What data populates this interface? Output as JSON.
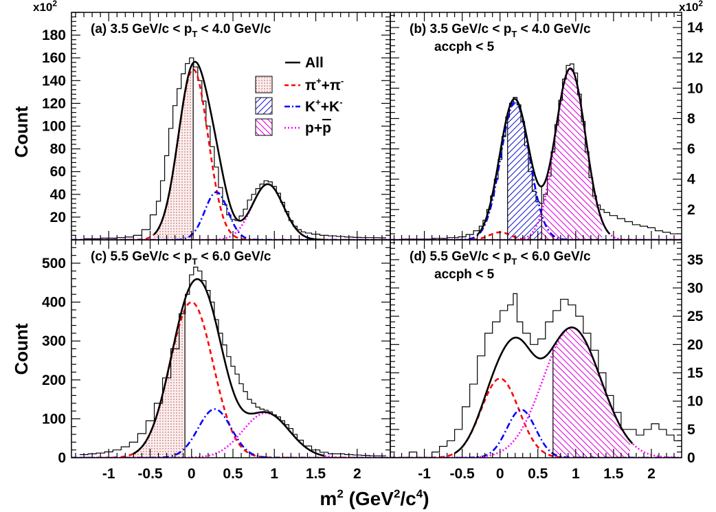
{
  "figure": {
    "y_title": "Count",
    "x_title_parts": [
      "m",
      "2",
      " (GeV",
      "2",
      "/c",
      "4",
      ")"
    ],
    "x_ticks": [
      "-1",
      "-0.5",
      "0",
      "0.5",
      "1",
      "1.5",
      "2"
    ],
    "colors": {
      "pi": "#ff0000",
      "k": "#0000ff",
      "p": "#ff00ff",
      "all": "#000000",
      "pi_fill": "#c06060"
    }
  },
  "chart_data": [
    {
      "id": "a",
      "type": "line",
      "label_parts": [
        "(a) 3.5 GeV/c < p",
        "T",
        " < 4.0 GeV/c"
      ],
      "label_line2": "",
      "xlim": [
        -1.45,
        2.4
      ],
      "ylim": [
        0,
        200
      ],
      "y_ticks": [
        "20",
        "40",
        "60",
        "80",
        "100",
        "120",
        "140",
        "160",
        "180"
      ],
      "y_tick_values": [
        20,
        40,
        60,
        80,
        100,
        120,
        140,
        160,
        180
      ],
      "y_side": "left",
      "multiplier_base": "x10",
      "multiplier_exp": "2",
      "legend": {
        "all": "All",
        "pi": [
          "π",
          "+",
          "+π",
          "-"
        ],
        "k": [
          "K",
          "+",
          "+K",
          "-"
        ],
        "p": [
          "p+",
          "p"
        ]
      },
      "series": [
        {
          "name": "π⁺+π⁻",
          "style": "dashed",
          "color": "#ff0000",
          "gaussian": {
            "amp": 150,
            "mu": 0.02,
            "sigma": 0.18
          }
        },
        {
          "name": "K⁺+K⁻",
          "style": "dashdot",
          "color": "#0000ff",
          "gaussian": {
            "amp": 42,
            "mu": 0.3,
            "sigma": 0.14
          }
        },
        {
          "name": "p+p̄",
          "style": "dotted",
          "color": "#ff00ff",
          "gaussian": {
            "amp": 49,
            "mu": 0.92,
            "sigma": 0.19
          }
        },
        {
          "name": "All",
          "style": "solid",
          "color": "#000000",
          "range": [
            -0.45,
            1.6
          ]
        }
      ],
      "fills": [
        {
          "species": "pi",
          "from": -0.45,
          "to": 0.02,
          "pattern": "dots"
        }
      ],
      "cut_lines": [
        0.02
      ],
      "hist": [
        [
          -1.25,
          1
        ],
        [
          -1.15,
          1
        ],
        [
          -1.05,
          1.5
        ],
        [
          -0.95,
          1.5
        ],
        [
          -0.85,
          2
        ],
        [
          -0.75,
          2.5
        ],
        [
          -0.65,
          4
        ],
        [
          -0.55,
          9
        ],
        [
          -0.45,
          22
        ],
        [
          -0.4,
          34
        ],
        [
          -0.35,
          52
        ],
        [
          -0.3,
          74
        ],
        [
          -0.25,
          98
        ],
        [
          -0.2,
          118
        ],
        [
          -0.15,
          133
        ],
        [
          -0.1,
          146
        ],
        [
          -0.05,
          155
        ],
        [
          0.0,
          160
        ],
        [
          0.05,
          152
        ],
        [
          0.1,
          140
        ],
        [
          0.15,
          122
        ],
        [
          0.2,
          100
        ],
        [
          0.25,
          82
        ],
        [
          0.3,
          64
        ],
        [
          0.35,
          46
        ],
        [
          0.4,
          31
        ],
        [
          0.45,
          22
        ],
        [
          0.5,
          18
        ],
        [
          0.55,
          17
        ],
        [
          0.6,
          21
        ],
        [
          0.65,
          27
        ],
        [
          0.7,
          35
        ],
        [
          0.75,
          40
        ],
        [
          0.8,
          45
        ],
        [
          0.85,
          49
        ],
        [
          0.9,
          52
        ],
        [
          0.95,
          51
        ],
        [
          1.0,
          47
        ],
        [
          1.05,
          41
        ],
        [
          1.1,
          33
        ],
        [
          1.15,
          25
        ],
        [
          1.2,
          17
        ],
        [
          1.25,
          12
        ],
        [
          1.3,
          9
        ],
        [
          1.35,
          7
        ],
        [
          1.4,
          6
        ],
        [
          1.5,
          5
        ],
        [
          1.6,
          4
        ],
        [
          1.7,
          3.5
        ],
        [
          1.8,
          3
        ],
        [
          1.9,
          2.5
        ],
        [
          2.0,
          2.2
        ],
        [
          2.1,
          2
        ],
        [
          2.2,
          2
        ],
        [
          2.3,
          1.8
        ]
      ]
    },
    {
      "id": "b",
      "type": "line",
      "label_parts": [
        "(b) 3.5 GeV/c < p",
        "T",
        " < 4.0 GeV/c"
      ],
      "label_line2": "accph < 5",
      "xlim": [
        -1.45,
        2.4
      ],
      "ylim": [
        0,
        15
      ],
      "y_ticks": [
        "2",
        "4",
        "6",
        "8",
        "10",
        "12",
        "14"
      ],
      "y_tick_values": [
        2,
        4,
        6,
        8,
        10,
        12,
        14
      ],
      "y_side": "right",
      "multiplier_base": "x10",
      "multiplier_exp": "2",
      "series": [
        {
          "name": "π⁺+π⁻",
          "style": "dashed",
          "color": "#ff0000",
          "gaussian": {
            "amp": 0.5,
            "mu": 0.0,
            "sigma": 0.14
          }
        },
        {
          "name": "K⁺+K⁻",
          "style": "dashdot",
          "color": "#0000ff",
          "gaussian": {
            "amp": 9.1,
            "mu": 0.2,
            "sigma": 0.19
          }
        },
        {
          "name": "p+p̄",
          "style": "dotted",
          "color": "#ff00ff",
          "gaussian": {
            "amp": 11.3,
            "mu": 0.93,
            "sigma": 0.2
          }
        },
        {
          "name": "All",
          "style": "solid",
          "color": "#000000",
          "range": [
            -0.3,
            1.45
          ]
        }
      ],
      "fills": [
        {
          "species": "k",
          "from": 0.1,
          "to": 0.55,
          "pattern": "hatch_fwd"
        },
        {
          "species": "p",
          "from": 0.55,
          "to": 1.35,
          "pattern": "hatch_back"
        }
      ],
      "cut_lines": [
        0.1,
        0.55
      ],
      "hist": [
        [
          -1.2,
          0.05
        ],
        [
          -1.0,
          0.05
        ],
        [
          -0.8,
          0.1
        ],
        [
          -0.6,
          0.15
        ],
        [
          -0.5,
          0.2
        ],
        [
          -0.4,
          0.35
        ],
        [
          -0.3,
          0.6
        ],
        [
          -0.25,
          0.9
        ],
        [
          -0.2,
          1.3
        ],
        [
          -0.15,
          2.0
        ],
        [
          -0.1,
          2.9
        ],
        [
          -0.05,
          4.0
        ],
        [
          0.0,
          5.3
        ],
        [
          0.05,
          6.8
        ],
        [
          0.1,
          8.1
        ],
        [
          0.15,
          9.0
        ],
        [
          0.2,
          9.4
        ],
        [
          0.25,
          8.9
        ],
        [
          0.3,
          7.8
        ],
        [
          0.35,
          6.2
        ],
        [
          0.4,
          4.5
        ],
        [
          0.45,
          3.2
        ],
        [
          0.5,
          2.5
        ],
        [
          0.55,
          2.4
        ],
        [
          0.6,
          3.0
        ],
        [
          0.65,
          4.2
        ],
        [
          0.7,
          5.8
        ],
        [
          0.75,
          7.6
        ],
        [
          0.8,
          9.2
        ],
        [
          0.85,
          10.6
        ],
        [
          0.9,
          11.5
        ],
        [
          0.95,
          11.6
        ],
        [
          1.0,
          11.0
        ],
        [
          1.05,
          9.6
        ],
        [
          1.1,
          7.8
        ],
        [
          1.15,
          5.8
        ],
        [
          1.2,
          4.1
        ],
        [
          1.25,
          2.9
        ],
        [
          1.3,
          2.3
        ],
        [
          1.35,
          2.0
        ],
        [
          1.4,
          1.8
        ],
        [
          1.5,
          1.6
        ],
        [
          1.6,
          1.4
        ],
        [
          1.7,
          1.2
        ],
        [
          1.8,
          1.0
        ],
        [
          1.9,
          0.9
        ],
        [
          2.0,
          0.8
        ],
        [
          2.1,
          0.6
        ],
        [
          2.2,
          0.5
        ],
        [
          2.3,
          0.4
        ]
      ]
    },
    {
      "id": "c",
      "type": "line",
      "label_parts": [
        "(c) 5.5 GeV/c < p",
        "T",
        " < 6.0 GeV/c"
      ],
      "label_line2": "",
      "xlim": [
        -1.45,
        2.4
      ],
      "ylim": [
        0,
        560
      ],
      "y_ticks": [
        "0",
        "100",
        "200",
        "300",
        "400",
        "500"
      ],
      "y_tick_values": [
        0,
        100,
        200,
        300,
        400,
        500
      ],
      "y_side": "left",
      "multiplier_base": "",
      "multiplier_exp": "",
      "series": [
        {
          "name": "π⁺+π⁻",
          "style": "dashed",
          "color": "#ff0000",
          "gaussian": {
            "amp": 400,
            "mu": 0.0,
            "sigma": 0.26
          }
        },
        {
          "name": "K⁺+K⁻",
          "style": "dashdot",
          "color": "#0000ff",
          "gaussian": {
            "amp": 125,
            "mu": 0.28,
            "sigma": 0.2
          }
        },
        {
          "name": "p+p̄",
          "style": "dotted",
          "color": "#ff00ff",
          "gaussian": {
            "amp": 115,
            "mu": 0.9,
            "sigma": 0.28
          }
        },
        {
          "name": "All",
          "style": "solid",
          "color": "#000000",
          "range": [
            -0.7,
            1.6
          ]
        }
      ],
      "fills": [
        {
          "species": "pi",
          "from": -1.0,
          "to": -0.08,
          "pattern": "dots"
        }
      ],
      "cut_lines": [
        -0.08
      ],
      "hist": [
        [
          -1.3,
          8
        ],
        [
          -1.2,
          10
        ],
        [
          -1.1,
          12
        ],
        [
          -1.0,
          15
        ],
        [
          -0.9,
          20
        ],
        [
          -0.8,
          28
        ],
        [
          -0.7,
          40
        ],
        [
          -0.6,
          62
        ],
        [
          -0.5,
          95
        ],
        [
          -0.4,
          140
        ],
        [
          -0.3,
          205
        ],
        [
          -0.2,
          280
        ],
        [
          -0.1,
          370
        ],
        [
          -0.05,
          420
        ],
        [
          0.0,
          470
        ],
        [
          0.05,
          490
        ],
        [
          0.1,
          480
        ],
        [
          0.15,
          455
        ],
        [
          0.2,
          430
        ],
        [
          0.25,
          400
        ],
        [
          0.3,
          355
        ],
        [
          0.35,
          320
        ],
        [
          0.4,
          290
        ],
        [
          0.45,
          260
        ],
        [
          0.5,
          235
        ],
        [
          0.55,
          215
        ],
        [
          0.6,
          190
        ],
        [
          0.65,
          170
        ],
        [
          0.7,
          150
        ],
        [
          0.75,
          140
        ],
        [
          0.8,
          130
        ],
        [
          0.85,
          125
        ],
        [
          0.9,
          122
        ],
        [
          0.95,
          118
        ],
        [
          1.0,
          110
        ],
        [
          1.05,
          105
        ],
        [
          1.1,
          95
        ],
        [
          1.15,
          85
        ],
        [
          1.2,
          75
        ],
        [
          1.25,
          60
        ],
        [
          1.3,
          45
        ],
        [
          1.4,
          30
        ],
        [
          1.5,
          20
        ],
        [
          1.6,
          14
        ],
        [
          1.7,
          10
        ],
        [
          1.8,
          10
        ],
        [
          1.9,
          8
        ],
        [
          2.0,
          7
        ],
        [
          2.1,
          6
        ],
        [
          2.2,
          5
        ],
        [
          2.3,
          5
        ]
      ]
    },
    {
      "id": "d",
      "type": "line",
      "label_parts": [
        "(d) 5.5 GeV/c < p",
        "T",
        " < 6.0 GeV/c"
      ],
      "label_line2": "accph < 5",
      "xlim": [
        -1.45,
        2.4
      ],
      "ylim": [
        0,
        38.5
      ],
      "y_ticks": [
        "0",
        "5",
        "10",
        "15",
        "20",
        "25",
        "30",
        "35"
      ],
      "y_tick_values": [
        0,
        5,
        10,
        15,
        20,
        25,
        30,
        35
      ],
      "y_side": "right",
      "multiplier_base": "",
      "multiplier_exp": "",
      "series": [
        {
          "name": "π⁺+π⁻",
          "style": "dashed",
          "color": "#ff0000",
          "gaussian": {
            "amp": 14,
            "mu": 0.0,
            "sigma": 0.25
          }
        },
        {
          "name": "K⁺+K⁻",
          "style": "dashdot",
          "color": "#0000ff",
          "gaussian": {
            "amp": 8.5,
            "mu": 0.28,
            "sigma": 0.19
          }
        },
        {
          "name": "p+p̄",
          "style": "dotted",
          "color": "#ff00ff",
          "gaussian": {
            "amp": 23,
            "mu": 0.95,
            "sigma": 0.38
          }
        },
        {
          "name": "All",
          "style": "solid",
          "color": "#000000",
          "range": [
            -0.6,
            1.75
          ]
        }
      ],
      "fills": [
        {
          "species": "p",
          "from": 0.7,
          "to": 1.72,
          "pattern": "hatch_back"
        }
      ],
      "cut_lines": [
        0.7
      ],
      "hist": [
        [
          -1.35,
          0
        ],
        [
          -1.25,
          0
        ],
        [
          -1.15,
          1
        ],
        [
          -1.05,
          0
        ],
        [
          -0.95,
          0
        ],
        [
          -0.85,
          1
        ],
        [
          -0.75,
          2
        ],
        [
          -0.65,
          3
        ],
        [
          -0.55,
          5
        ],
        [
          -0.45,
          9
        ],
        [
          -0.35,
          13
        ],
        [
          -0.25,
          18
        ],
        [
          -0.15,
          22
        ],
        [
          -0.05,
          24
        ],
        [
          0.05,
          26
        ],
        [
          0.15,
          27
        ],
        [
          0.2,
          29
        ],
        [
          0.25,
          24
        ],
        [
          0.35,
          22
        ],
        [
          0.45,
          20
        ],
        [
          0.55,
          21
        ],
        [
          0.65,
          24
        ],
        [
          0.75,
          26
        ],
        [
          0.85,
          28
        ],
        [
          0.95,
          27
        ],
        [
          1.05,
          25
        ],
        [
          1.15,
          22
        ],
        [
          1.25,
          19
        ],
        [
          1.35,
          15
        ],
        [
          1.45,
          11
        ],
        [
          1.55,
          8
        ],
        [
          1.65,
          5
        ],
        [
          1.75,
          5
        ],
        [
          1.85,
          4
        ],
        [
          1.95,
          5
        ],
        [
          2.05,
          6
        ],
        [
          2.15,
          5
        ],
        [
          2.25,
          4
        ],
        [
          2.35,
          3
        ]
      ]
    }
  ]
}
